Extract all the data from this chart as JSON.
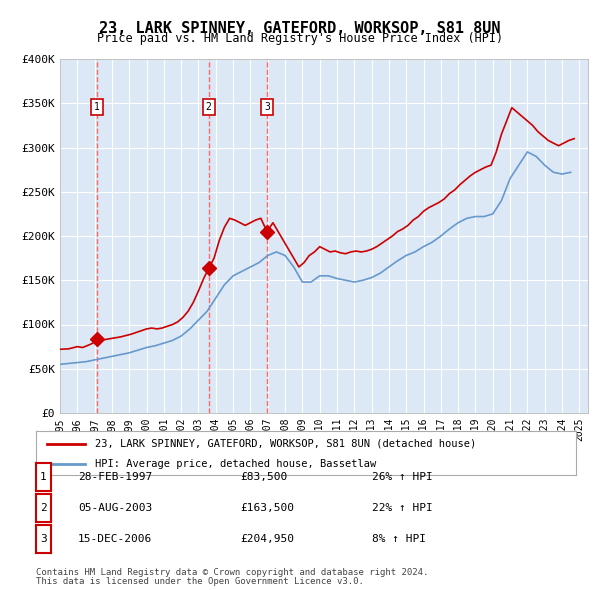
{
  "title": "23, LARK SPINNEY, GATEFORD, WORKSOP, S81 8UN",
  "subtitle": "Price paid vs. HM Land Registry's House Price Index (HPI)",
  "sales": [
    {
      "date_num": 1997.15,
      "price": 83500,
      "label": "1",
      "date_str": "28-FEB-1997",
      "pct": "26%"
    },
    {
      "date_num": 2003.59,
      "price": 163500,
      "label": "2",
      "date_str": "05-AUG-2003",
      "pct": "22%"
    },
    {
      "date_num": 2006.96,
      "price": 204950,
      "label": "3",
      "date_str": "15-DEC-2006",
      "pct": "8%"
    }
  ],
  "property_line_color": "#cc0000",
  "hpi_line_color": "#6699cc",
  "sale_marker_color": "#cc0000",
  "vline_color": "#ff6666",
  "plot_bg": "#dce8f5",
  "fig_bg": "#ffffff",
  "xlabel": "",
  "ylabel": "",
  "ylim": [
    0,
    400000
  ],
  "xlim": [
    1995,
    2025.5
  ],
  "yticks": [
    0,
    50000,
    100000,
    150000,
    200000,
    250000,
    300000,
    350000,
    400000
  ],
  "ytick_labels": [
    "£0",
    "£50K",
    "£100K",
    "£150K",
    "£200K",
    "£250K",
    "£300K",
    "£350K",
    "£400K"
  ],
  "xticks": [
    1995,
    1996,
    1997,
    1998,
    1999,
    2000,
    2001,
    2002,
    2003,
    2004,
    2005,
    2006,
    2007,
    2008,
    2009,
    2010,
    2011,
    2012,
    2013,
    2014,
    2015,
    2016,
    2017,
    2018,
    2019,
    2020,
    2021,
    2022,
    2023,
    2024,
    2025
  ],
  "legend_property": "23, LARK SPINNEY, GATEFORD, WORKSOP, S81 8UN (detached house)",
  "legend_hpi": "HPI: Average price, detached house, Bassetlaw",
  "footer1": "Contains HM Land Registry data © Crown copyright and database right 2024.",
  "footer2": "This data is licensed under the Open Government Licence v3.0.",
  "property_x": [
    1995.0,
    1995.5,
    1996.0,
    1996.3,
    1996.5,
    1996.8,
    1997.0,
    1997.15,
    1997.3,
    1997.6,
    1997.9,
    1998.2,
    1998.5,
    1998.8,
    1999.1,
    1999.4,
    1999.7,
    2000.0,
    2000.3,
    2000.6,
    2000.9,
    2001.2,
    2001.5,
    2001.8,
    2002.1,
    2002.4,
    2002.7,
    2003.0,
    2003.3,
    2003.59,
    2003.9,
    2004.2,
    2004.5,
    2004.8,
    2005.1,
    2005.4,
    2005.7,
    2006.0,
    2006.3,
    2006.6,
    2006.96,
    2007.3,
    2007.6,
    2007.9,
    2008.2,
    2008.5,
    2008.8,
    2009.1,
    2009.4,
    2009.7,
    2010.0,
    2010.3,
    2010.6,
    2010.9,
    2011.2,
    2011.5,
    2011.8,
    2012.1,
    2012.4,
    2012.7,
    2013.0,
    2013.3,
    2013.6,
    2013.9,
    2014.2,
    2014.5,
    2014.8,
    2015.1,
    2015.4,
    2015.7,
    2016.0,
    2016.3,
    2016.6,
    2016.9,
    2017.2,
    2017.5,
    2017.8,
    2018.1,
    2018.4,
    2018.7,
    2019.0,
    2019.3,
    2019.6,
    2019.9,
    2020.2,
    2020.5,
    2020.8,
    2021.1,
    2021.4,
    2021.7,
    2022.0,
    2022.3,
    2022.6,
    2022.9,
    2023.2,
    2023.5,
    2023.8,
    2024.1,
    2024.4,
    2024.7
  ],
  "property_y": [
    72000,
    72500,
    75000,
    74000,
    75500,
    78000,
    80000,
    83500,
    82000,
    83000,
    84000,
    85000,
    86000,
    87500,
    89000,
    91000,
    93000,
    95000,
    96000,
    95000,
    96000,
    98000,
    100000,
    103000,
    108000,
    115000,
    125000,
    138000,
    152000,
    163500,
    175000,
    195000,
    210000,
    220000,
    218000,
    215000,
    212000,
    215000,
    218000,
    220000,
    204950,
    215000,
    205000,
    195000,
    185000,
    175000,
    165000,
    170000,
    178000,
    182000,
    188000,
    185000,
    182000,
    183000,
    181000,
    180000,
    182000,
    183000,
    182000,
    183000,
    185000,
    188000,
    192000,
    196000,
    200000,
    205000,
    208000,
    212000,
    218000,
    222000,
    228000,
    232000,
    235000,
    238000,
    242000,
    248000,
    252000,
    258000,
    263000,
    268000,
    272000,
    275000,
    278000,
    280000,
    295000,
    315000,
    330000,
    345000,
    340000,
    335000,
    330000,
    325000,
    318000,
    313000,
    308000,
    305000,
    302000,
    305000,
    308000,
    310000
  ],
  "hpi_x": [
    1995.0,
    1995.5,
    1996.0,
    1996.5,
    1997.0,
    1997.5,
    1998.0,
    1998.5,
    1999.0,
    1999.5,
    2000.0,
    2000.5,
    2001.0,
    2001.5,
    2002.0,
    2002.5,
    2003.0,
    2003.5,
    2004.0,
    2004.5,
    2005.0,
    2005.5,
    2006.0,
    2006.5,
    2007.0,
    2007.5,
    2008.0,
    2008.5,
    2009.0,
    2009.5,
    2010.0,
    2010.5,
    2011.0,
    2011.5,
    2012.0,
    2012.5,
    2013.0,
    2013.5,
    2014.0,
    2014.5,
    2015.0,
    2015.5,
    2016.0,
    2016.5,
    2017.0,
    2017.5,
    2018.0,
    2018.5,
    2019.0,
    2019.5,
    2020.0,
    2020.5,
    2021.0,
    2021.5,
    2022.0,
    2022.5,
    2023.0,
    2023.5,
    2024.0,
    2024.5
  ],
  "hpi_y": [
    55000,
    56000,
    57000,
    58000,
    60000,
    62000,
    64000,
    66000,
    68000,
    71000,
    74000,
    76000,
    79000,
    82000,
    87000,
    95000,
    105000,
    115000,
    130000,
    145000,
    155000,
    160000,
    165000,
    170000,
    178000,
    182000,
    178000,
    165000,
    148000,
    148000,
    155000,
    155000,
    152000,
    150000,
    148000,
    150000,
    153000,
    158000,
    165000,
    172000,
    178000,
    182000,
    188000,
    193000,
    200000,
    208000,
    215000,
    220000,
    222000,
    222000,
    225000,
    240000,
    265000,
    280000,
    295000,
    290000,
    280000,
    272000,
    270000,
    272000
  ]
}
